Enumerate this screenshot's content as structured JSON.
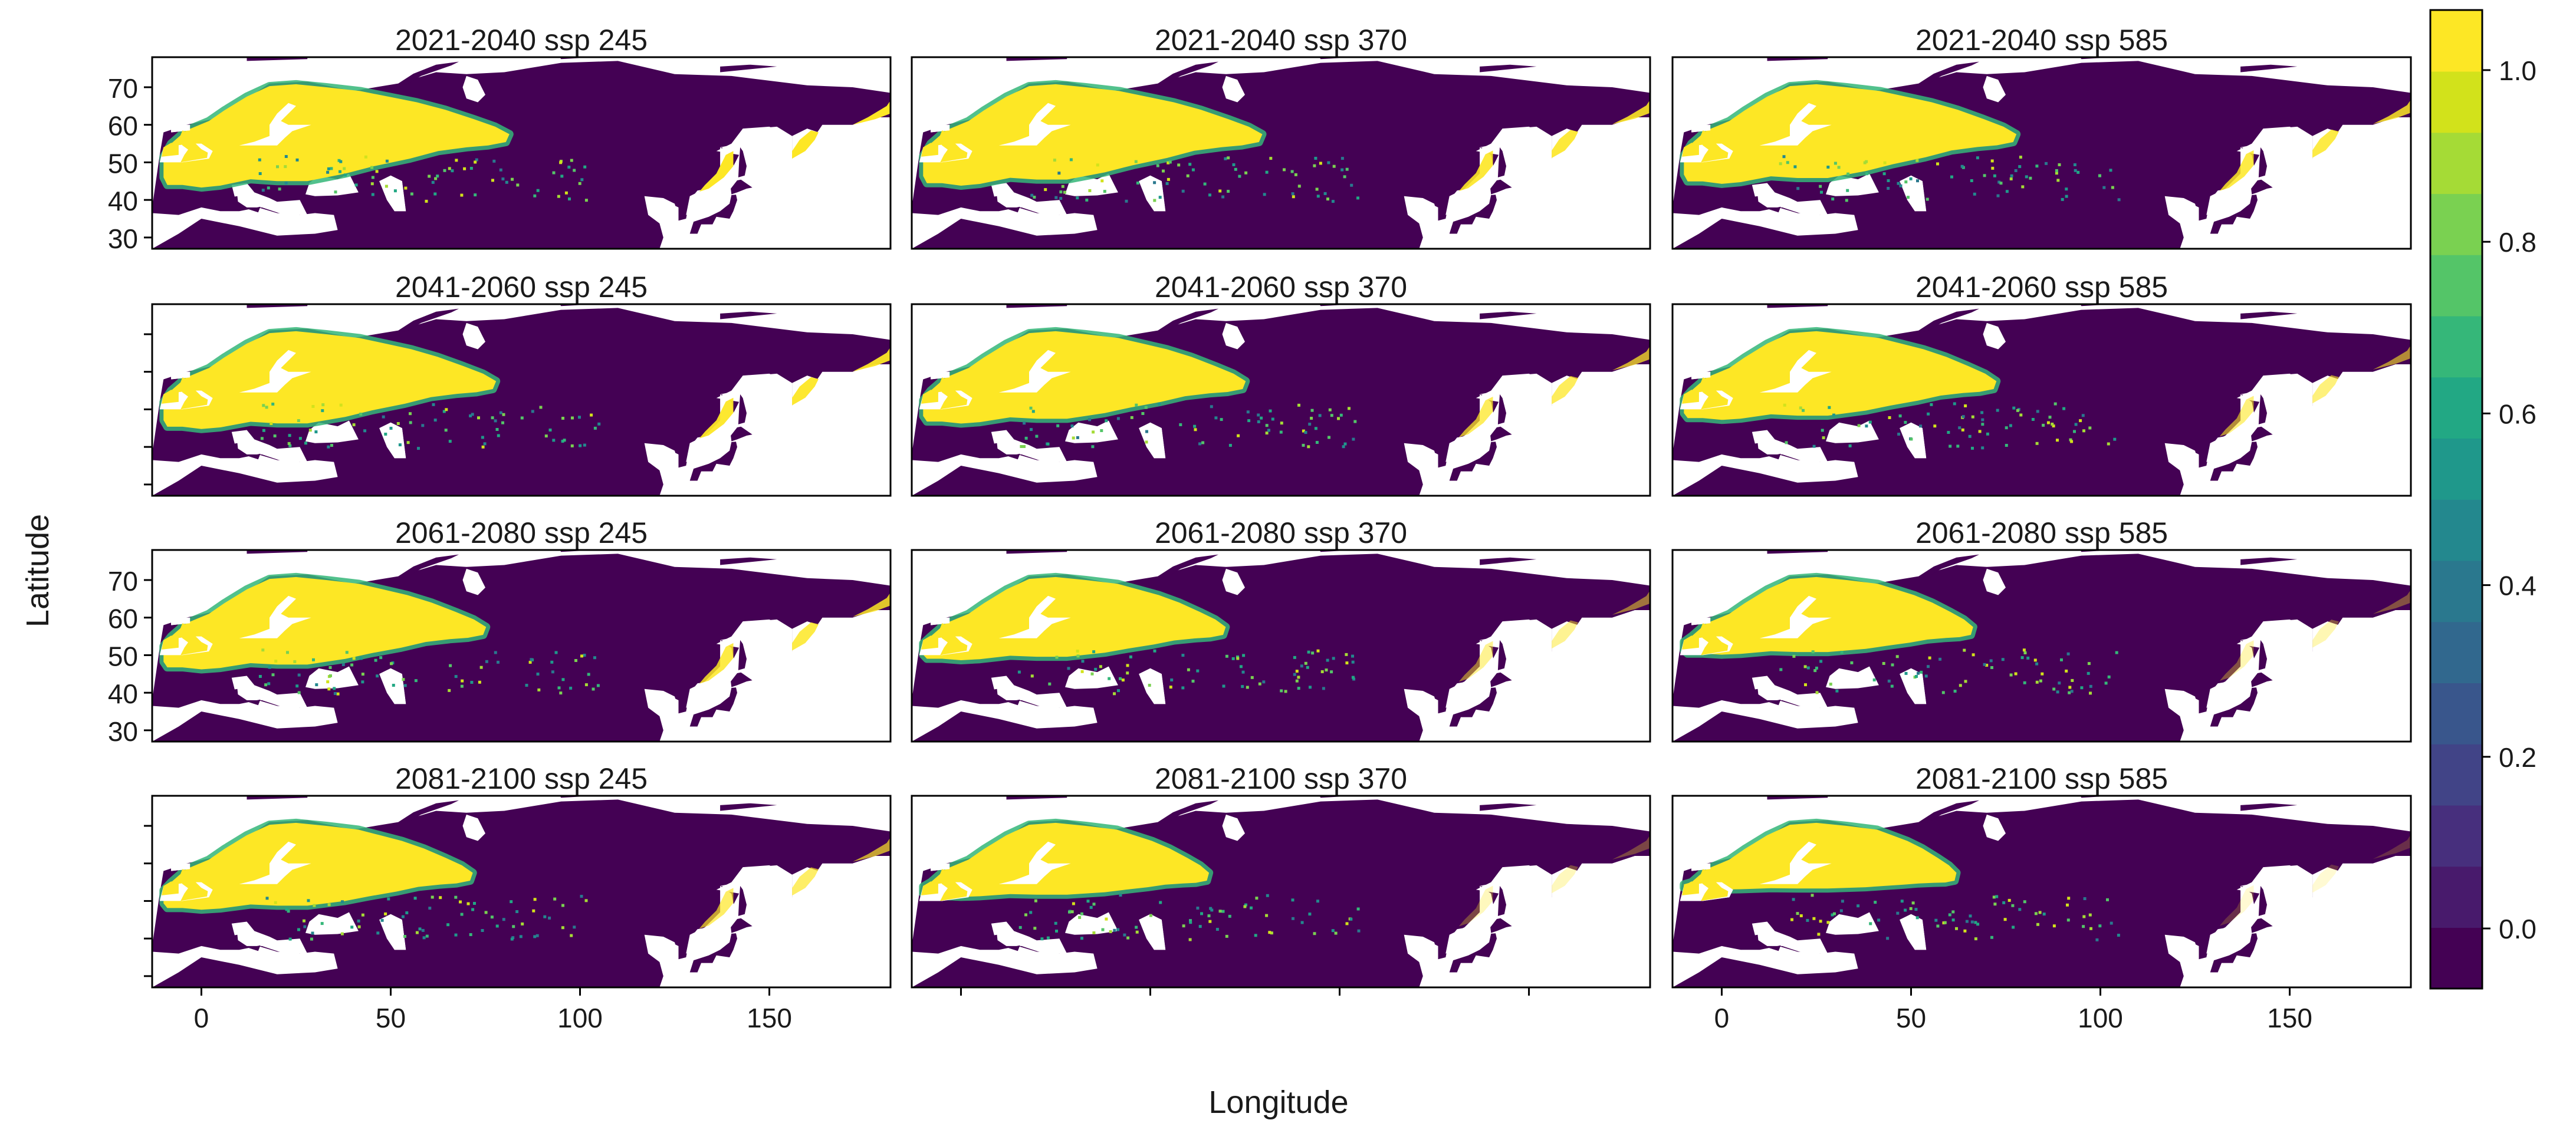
{
  "chart_data": {
    "type": "heatmap",
    "layout": "4 rows x 3 columns, shared axes",
    "xlabel": "Longitude",
    "ylabel": "Latitude",
    "xlim": [
      -13,
      182
    ],
    "ylim": [
      27,
      78
    ],
    "x_ticks": [
      0,
      50,
      100,
      150
    ],
    "y_ticks": [
      30,
      40,
      50,
      60,
      70
    ],
    "panels": [
      {
        "title": "2021-2040 ssp 245",
        "period": "2021-2040",
        "scenario": "ssp 245"
      },
      {
        "title": "2021-2040 ssp 370",
        "period": "2021-2040",
        "scenario": "ssp 370"
      },
      {
        "title": "2021-2040 ssp 585",
        "period": "2021-2040",
        "scenario": "ssp 585"
      },
      {
        "title": "2041-2060 ssp 245",
        "period": "2041-2060",
        "scenario": "ssp 245"
      },
      {
        "title": "2041-2060 ssp 370",
        "period": "2041-2060",
        "scenario": "ssp 370"
      },
      {
        "title": "2041-2060 ssp 585",
        "period": "2041-2060",
        "scenario": "ssp 585"
      },
      {
        "title": "2061-2080 ssp 245",
        "period": "2061-2080",
        "scenario": "ssp 245"
      },
      {
        "title": "2061-2080 ssp 370",
        "period": "2061-2080",
        "scenario": "ssp 370"
      },
      {
        "title": "2061-2080 ssp 585",
        "period": "2061-2080",
        "scenario": "ssp 585"
      },
      {
        "title": "2081-2100 ssp 245",
        "period": "2081-2100",
        "scenario": "ssp 245"
      },
      {
        "title": "2081-2100 ssp 370",
        "period": "2081-2100",
        "scenario": "ssp 370"
      },
      {
        "title": "2081-2100 ssp 585",
        "period": "2081-2100",
        "scenario": "ssp 585"
      }
    ],
    "colorbar": {
      "min": -0.07,
      "max": 1.07,
      "ticks": [
        0.0,
        0.2,
        0.4,
        0.6,
        0.8,
        1.0
      ],
      "tick_labels": [
        "0.0",
        "0.2",
        "0.4",
        "0.6",
        "0.8",
        "1.0"
      ],
      "bins": 16,
      "palette": [
        "#440154",
        "#481a6c",
        "#472f7d",
        "#414487",
        "#39568c",
        "#31688e",
        "#2a788e",
        "#23888e",
        "#1f988b",
        "#22a884",
        "#35b779",
        "#54c568",
        "#7ad151",
        "#a5db36",
        "#d2e21b",
        "#fde725"
      ]
    },
    "colors": {
      "background_land": "#440154",
      "suitable": "#fde725",
      "no_data": "#ffffff"
    }
  }
}
